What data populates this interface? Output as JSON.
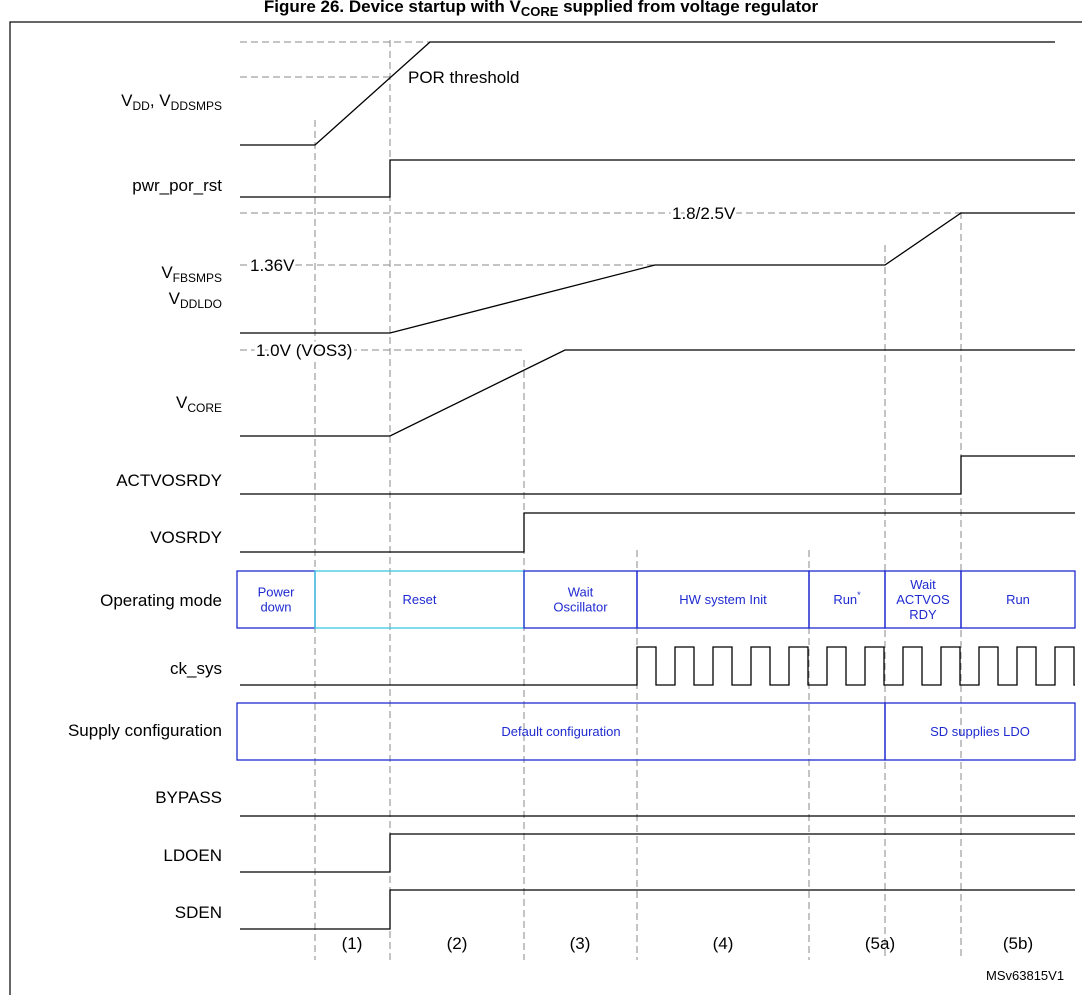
{
  "title": {
    "pre": "Figure 26. Device startup with V",
    "sub": "CORE",
    "post": " supplied from voltage regulator"
  },
  "signals": [
    {
      "lines": [
        [
          {
            "text": "V"
          },
          {
            "text": "DD",
            "sub": true
          },
          {
            "text": ", V"
          },
          {
            "text": "DDSMPS",
            "sub": true
          }
        ]
      ]
    },
    {
      "lines": [
        [
          {
            "text": "pwr_por_rst"
          }
        ]
      ]
    },
    {
      "lines": [
        [
          {
            "text": "V"
          },
          {
            "text": "FBSMPS",
            "sub": true
          }
        ],
        [
          {
            "text": "V"
          },
          {
            "text": "DDLDO",
            "sub": true
          }
        ]
      ]
    },
    {
      "lines": [
        [
          {
            "text": "V"
          },
          {
            "text": "CORE",
            "sub": true
          }
        ]
      ]
    },
    {
      "lines": [
        [
          {
            "text": "ACTVOSRDY"
          }
        ]
      ]
    },
    {
      "lines": [
        [
          {
            "text": "VOSRDY"
          }
        ]
      ]
    },
    {
      "lines": [
        [
          {
            "text": "Operating mode"
          }
        ]
      ]
    },
    {
      "lines": [
        [
          {
            "text": "ck_sys"
          }
        ]
      ]
    },
    {
      "lines": [
        [
          {
            "text": "Supply configuration"
          }
        ]
      ]
    },
    {
      "lines": [
        [
          {
            "text": "BYPASS"
          }
        ]
      ]
    },
    {
      "lines": [
        [
          {
            "text": "LDOEN"
          }
        ]
      ]
    },
    {
      "lines": [
        [
          {
            "text": "SDEN"
          }
        ]
      ]
    }
  ],
  "operating_modes": [
    {
      "lines": [
        "Power",
        "down"
      ]
    },
    {
      "lines": [
        "Reset"
      ]
    },
    {
      "lines": [
        "Wait",
        "Oscillator"
      ]
    },
    {
      "lines": [
        "HW system Init"
      ]
    },
    {
      "lines": [
        "Run"
      ],
      "sup": "*"
    },
    {
      "lines": [
        "Wait",
        "ACTVOS",
        "RDY"
      ]
    },
    {
      "lines": [
        "Run"
      ]
    }
  ],
  "supply_configurations": [
    "Default configuration",
    "SD supplies LDO"
  ],
  "annotations": [
    "POR threshold",
    "1.8/2.5V",
    "1.36V",
    "1.0V (VOS3)"
  ],
  "phases": [
    "(1)",
    "(2)",
    "(3)",
    "(4)",
    "(5a)",
    "(5b)"
  ],
  "figure_id": "MSv63815V1"
}
